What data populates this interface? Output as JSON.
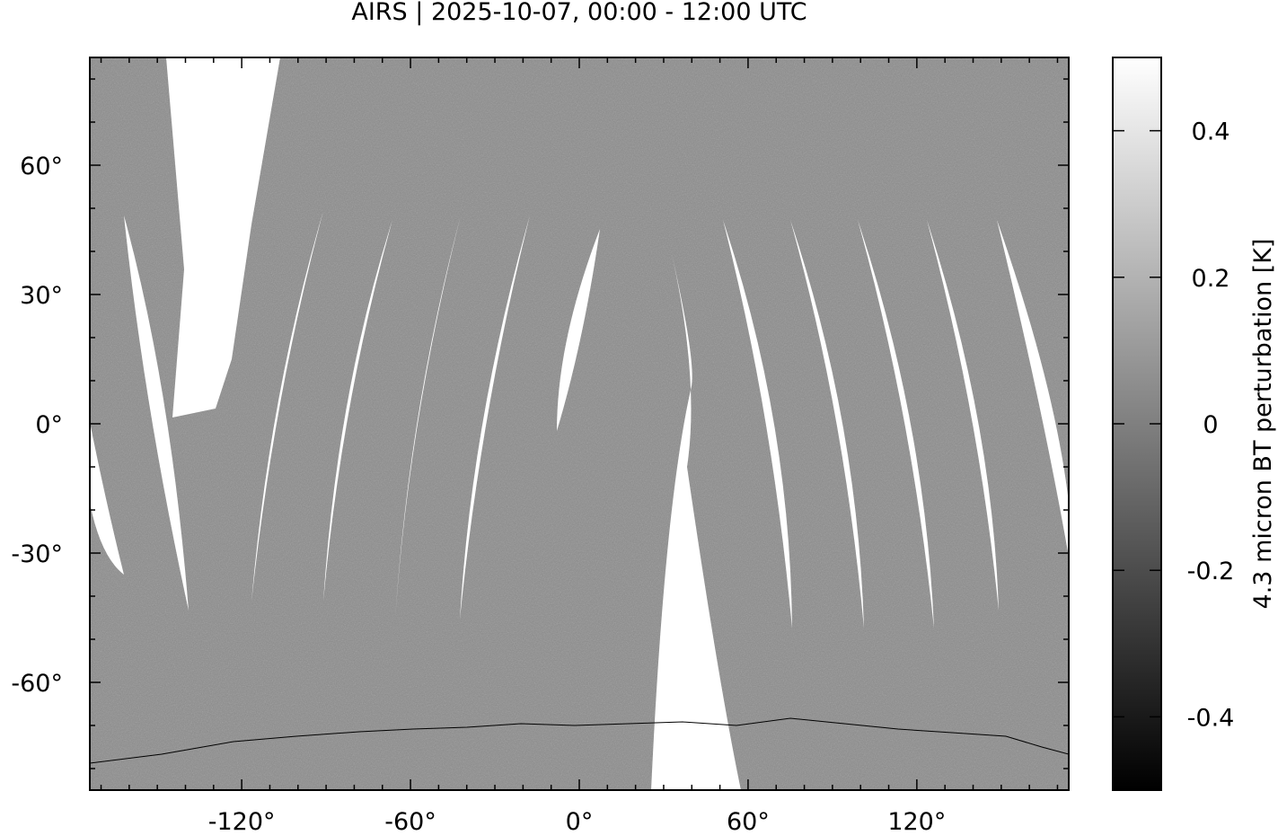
{
  "title": "AIRS | 2025-10-07, 00:00 - 12:00 UTC",
  "chart_data": {
    "type": "heatmap",
    "title": "AIRS | 2025-10-07, 00:00 - 12:00 UTC",
    "xlabel": "",
    "ylabel": "",
    "projection": "equirectangular",
    "xlim": [
      -174,
      174
    ],
    "ylim": [
      -85,
      85
    ],
    "x_ticks": [
      -120,
      -60,
      0,
      60,
      120
    ],
    "x_tick_labels": [
      "-120°",
      "-60°",
      "0°",
      "60°",
      "120°"
    ],
    "y_ticks": [
      60,
      30,
      0,
      -30,
      -60
    ],
    "y_tick_labels": [
      "60°",
      "30°",
      "0°",
      "-30°",
      "-60°"
    ],
    "minor_tick_step": 10,
    "grid": false,
    "colormap": "grayscale",
    "colorbar": {
      "label": "4.3 micron BT perturbation [K]",
      "range": [
        -0.5,
        0.5
      ],
      "ticks": [
        0.4,
        0.2,
        0,
        -0.2,
        -0.4
      ],
      "tick_labels": [
        "0.4",
        "0.2",
        "0",
        "-0.2",
        "-0.4"
      ],
      "low_color": "#000000",
      "high_color": "#ffffff"
    },
    "no_data_color": "#ffffff",
    "field_color": "#8c8c8c"
  }
}
